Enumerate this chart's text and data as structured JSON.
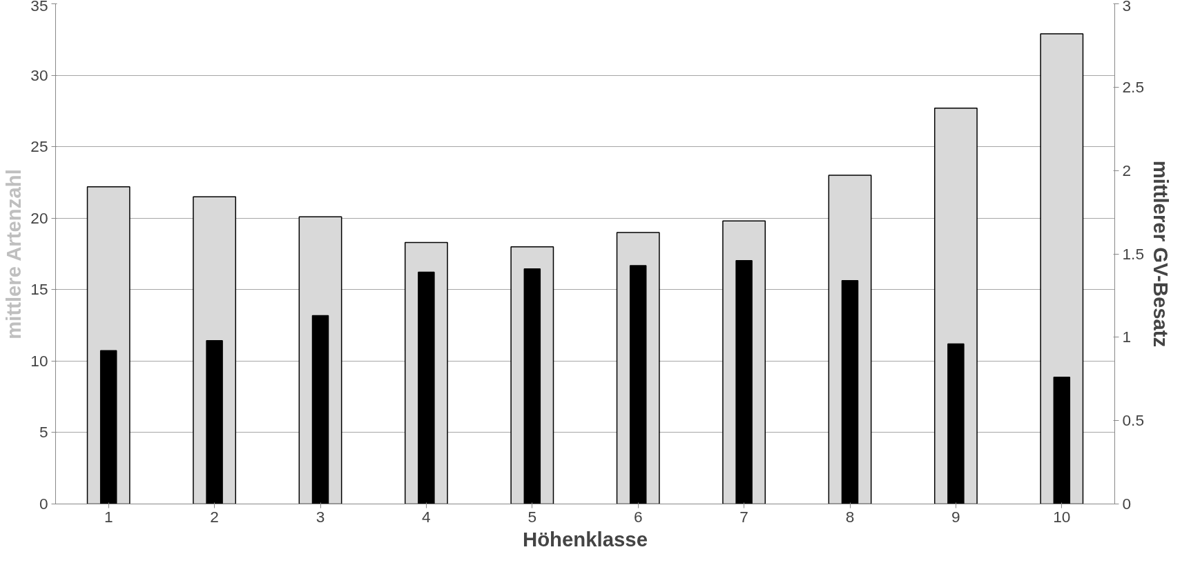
{
  "chart_data": {
    "type": "bar",
    "xlabel": "Höhenklasse",
    "ylabel": "mittlere Artenzahl",
    "y2label": "mittlerer GV-Besatz",
    "categories": [
      "1",
      "2",
      "3",
      "4",
      "5",
      "6",
      "7",
      "8",
      "9",
      "10"
    ],
    "series": [
      {
        "color": "#d9d9d9",
        "values": [
          22.2,
          21.5,
          20.1,
          18.3,
          18.0,
          19.0,
          19.8,
          23.0,
          27.7,
          32.9
        ]
      },
      {
        "axis": "y2",
        "color": "#000000",
        "values": [
          0.92,
          0.98,
          1.13,
          1.39,
          1.41,
          1.43,
          1.46,
          1.34,
          0.96,
          0.76
        ]
      }
    ],
    "ylim": [
      0,
      35
    ],
    "yticks": [
      0,
      5,
      10,
      15,
      20,
      25,
      30,
      35
    ],
    "y2lim": [
      0,
      3
    ],
    "y2ticks": [
      0,
      0.5,
      1,
      1.5,
      2,
      2.5,
      3
    ],
    "grid": "y"
  }
}
